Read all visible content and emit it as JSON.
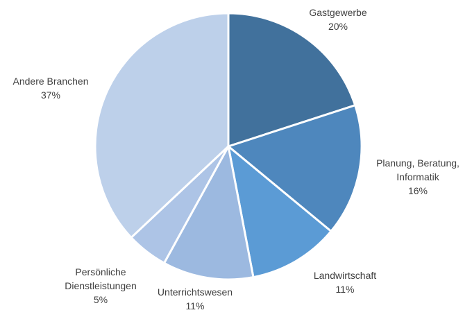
{
  "chart_data": {
    "type": "pie",
    "title": "",
    "slices": [
      {
        "label_lines": [
          "Gastgewerbe"
        ],
        "value": 20,
        "value_label": "20%",
        "color": "#41719c"
      },
      {
        "label_lines": [
          "Planung, Beratung,",
          "Informatik"
        ],
        "value": 16,
        "value_label": "16%",
        "color": "#4e87bd"
      },
      {
        "label_lines": [
          "Landwirtschaft"
        ],
        "value": 11,
        "value_label": "11%",
        "color": "#5b9bd5"
      },
      {
        "label_lines": [
          "Unterrichtswesen"
        ],
        "value": 11,
        "value_label": "11%",
        "color": "#9cb9e0"
      },
      {
        "label_lines": [
          "Persönliche",
          "Dienstleistungen"
        ],
        "value": 5,
        "value_label": "5%",
        "color": "#adc4e6"
      },
      {
        "label_lines": [
          "Andere Branchen"
        ],
        "value": 37,
        "value_label": "37%",
        "color": "#bdd0ea"
      }
    ],
    "start_angle": "12 o'clock",
    "direction": "clockwise",
    "legend": "none",
    "data_labels": "outside, category name and percentage"
  }
}
